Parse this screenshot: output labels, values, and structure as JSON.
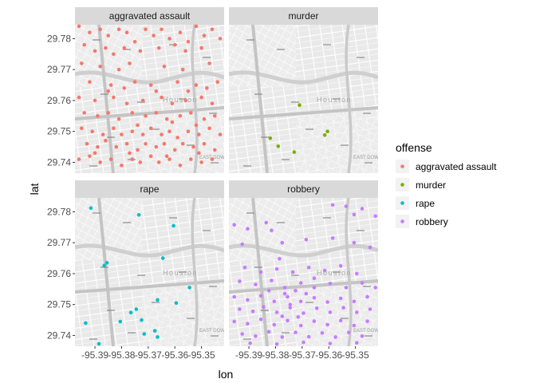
{
  "chart_data": {
    "type": "scatter",
    "xlabel": "lon",
    "ylabel": "lat",
    "xlim": [
      -95.3975,
      -95.3415
    ],
    "ylim": [
      29.7365,
      29.7845
    ],
    "x_ticks": [
      -95.39,
      -95.38,
      -95.37,
      -95.36,
      -95.35
    ],
    "x_tick_labels": [
      "-95.39",
      "-95.38",
      "-95.37",
      "-95.36",
      "-95.35"
    ],
    "y_ticks": [
      29.74,
      29.75,
      29.76,
      29.77,
      29.78
    ],
    "y_tick_labels": [
      "29.74",
      "29.75",
      "29.76",
      "29.77",
      "29.78"
    ],
    "facets": [
      "aggravated assault",
      "murder",
      "rape",
      "robbery"
    ],
    "legend": {
      "title": "offense",
      "position": "right",
      "entries": [
        "aggravated assault",
        "murder",
        "rape",
        "robbery"
      ]
    },
    "colors": {
      "aggravated assault": "#F8766D",
      "murder": "#7CAE00",
      "rape": "#00BFC4",
      "robbery": "#C77CFF"
    },
    "basemap_labels": [
      "Houston",
      "EAST DOWNTOWN"
    ],
    "series": [
      {
        "name": "aggravated assault",
        "points": [
          [
            -95.396,
            29.784
          ],
          [
            -95.392,
            29.782
          ],
          [
            -95.388,
            29.783
          ],
          [
            -95.385,
            29.781
          ],
          [
            -95.381,
            29.783
          ],
          [
            -95.378,
            29.782
          ],
          [
            -95.375,
            29.779
          ],
          [
            -95.371,
            29.783
          ],
          [
            -95.368,
            29.781
          ],
          [
            -95.365,
            29.783
          ],
          [
            -95.362,
            29.78
          ],
          [
            -95.358,
            29.782
          ],
          [
            -95.355,
            29.779
          ],
          [
            -95.352,
            29.784
          ],
          [
            -95.349,
            29.781
          ],
          [
            -95.346,
            29.783
          ],
          [
            -95.343,
            29.78
          ],
          [
            -95.394,
            29.778
          ],
          [
            -95.39,
            29.776
          ],
          [
            -95.386,
            29.777
          ],
          [
            -95.383,
            29.775
          ],
          [
            -95.379,
            29.777
          ],
          [
            -95.373,
            29.776
          ],
          [
            -95.366,
            29.777
          ],
          [
            -95.36,
            29.778
          ],
          [
            -95.356,
            29.776
          ],
          [
            -95.35,
            29.777
          ],
          [
            -95.395,
            29.772
          ],
          [
            -95.388,
            29.771
          ],
          [
            -95.381,
            29.77
          ],
          [
            -95.377,
            29.772
          ],
          [
            -95.364,
            29.771
          ],
          [
            -95.357,
            29.77
          ],
          [
            -95.347,
            29.772
          ],
          [
            -95.392,
            29.766
          ],
          [
            -95.384,
            29.765
          ],
          [
            -95.375,
            29.766
          ],
          [
            -95.369,
            29.765
          ],
          [
            -95.359,
            29.766
          ],
          [
            -95.352,
            29.765
          ],
          [
            -95.344,
            29.766
          ],
          [
            -95.396,
            29.761
          ],
          [
            -95.39,
            29.76
          ],
          [
            -95.383,
            29.761
          ],
          [
            -95.378,
            29.759
          ],
          [
            -95.372,
            29.76
          ],
          [
            -95.365,
            29.761
          ],
          [
            -95.361,
            29.759
          ],
          [
            -95.356,
            29.76
          ],
          [
            -95.35,
            29.761
          ],
          [
            -95.346,
            29.759
          ],
          [
            -95.394,
            29.756
          ],
          [
            -95.389,
            29.755
          ],
          [
            -95.385,
            29.756
          ],
          [
            -95.381,
            29.754
          ],
          [
            -95.376,
            29.756
          ],
          [
            -95.371,
            29.755
          ],
          [
            -95.367,
            29.756
          ],
          [
            -95.363,
            29.754
          ],
          [
            -95.358,
            29.755
          ],
          [
            -95.354,
            29.756
          ],
          [
            -95.349,
            29.754
          ],
          [
            -95.345,
            29.755
          ],
          [
            -95.395,
            29.751
          ],
          [
            -95.391,
            29.75
          ],
          [
            -95.387,
            29.749
          ],
          [
            -95.383,
            29.751
          ],
          [
            -95.38,
            29.749
          ],
          [
            -95.376,
            29.75
          ],
          [
            -95.372,
            29.749
          ],
          [
            -95.369,
            29.751
          ],
          [
            -95.365,
            29.749
          ],
          [
            -95.362,
            29.75
          ],
          [
            -95.359,
            29.748
          ],
          [
            -95.355,
            29.75
          ],
          [
            -95.351,
            29.749
          ],
          [
            -95.347,
            29.751
          ],
          [
            -95.343,
            29.749
          ],
          [
            -95.393,
            29.746
          ],
          [
            -95.389,
            29.745
          ],
          [
            -95.386,
            29.747
          ],
          [
            -95.382,
            29.745
          ],
          [
            -95.378,
            29.746
          ],
          [
            -95.374,
            29.744
          ],
          [
            -95.371,
            29.746
          ],
          [
            -95.367,
            29.745
          ],
          [
            -95.364,
            29.746
          ],
          [
            -95.36,
            29.744
          ],
          [
            -95.357,
            29.746
          ],
          [
            -95.353,
            29.745
          ],
          [
            -95.349,
            29.746
          ],
          [
            -95.345,
            29.744
          ],
          [
            -95.396,
            29.741
          ],
          [
            -95.392,
            29.742
          ],
          [
            -95.388,
            29.74
          ],
          [
            -95.384,
            29.741
          ],
          [
            -95.38,
            29.739
          ],
          [
            -95.376,
            29.741
          ],
          [
            -95.373,
            29.74
          ],
          [
            -95.369,
            29.742
          ],
          [
            -95.366,
            29.74
          ],
          [
            -95.362,
            29.741
          ],
          [
            -95.358,
            29.739
          ],
          [
            -95.354,
            29.741
          ],
          [
            -95.35,
            29.74
          ],
          [
            -95.346,
            29.741
          ],
          [
            -95.385,
            29.763
          ],
          [
            -95.379,
            29.764
          ],
          [
            -95.367,
            29.763
          ],
          [
            -95.355,
            29.763
          ],
          [
            -95.348,
            29.764
          ],
          [
            -95.374,
            29.752
          ],
          [
            -95.361,
            29.753
          ],
          [
            -95.352,
            29.752
          ],
          [
            -95.39,
            29.743
          ],
          [
            -95.377,
            29.743
          ],
          [
            -95.363,
            29.742
          ],
          [
            -95.351,
            29.743
          ]
        ]
      },
      {
        "name": "murder",
        "points": [
          [
            -95.371,
            29.7585
          ],
          [
            -95.382,
            29.7478
          ],
          [
            -95.379,
            29.7452
          ],
          [
            -95.373,
            29.7433
          ],
          [
            -95.3615,
            29.7488
          ],
          [
            -95.3605,
            29.75
          ]
        ]
      },
      {
        "name": "rape",
        "points": [
          [
            -95.3915,
            29.7812
          ],
          [
            -95.3735,
            29.779
          ],
          [
            -95.3605,
            29.7755
          ],
          [
            -95.3855,
            29.7635
          ],
          [
            -95.3865,
            29.7626
          ],
          [
            -95.3645,
            29.765
          ],
          [
            -95.3545,
            29.7555
          ],
          [
            -95.3665,
            29.7515
          ],
          [
            -95.3595,
            29.7505
          ],
          [
            -95.3745,
            29.7485
          ],
          [
            -95.3765,
            29.7474
          ],
          [
            -95.3935,
            29.744
          ],
          [
            -95.3805,
            29.7445
          ],
          [
            -95.3725,
            29.745
          ],
          [
            -95.3675,
            29.7415
          ],
          [
            -95.3885,
            29.7373
          ],
          [
            -95.3715,
            29.7405
          ],
          [
            -95.3665,
            29.7395
          ]
        ]
      },
      {
        "name": "robbery",
        "points": [
          [
            -95.3585,
            29.7822
          ],
          [
            -95.3535,
            29.7818
          ],
          [
            -95.3505,
            29.7791
          ],
          [
            -95.3425,
            29.7786
          ],
          [
            -95.3475,
            29.781
          ],
          [
            -95.3955,
            29.7758
          ],
          [
            -95.3905,
            29.7745
          ],
          [
            -95.3835,
            29.7765
          ],
          [
            -95.3815,
            29.774
          ],
          [
            -95.3925,
            29.7695
          ],
          [
            -95.3775,
            29.77
          ],
          [
            -95.3685,
            29.771
          ],
          [
            -95.3585,
            29.7715
          ],
          [
            -95.3505,
            29.77
          ],
          [
            -95.3445,
            29.7685
          ],
          [
            -95.3915,
            29.762
          ],
          [
            -95.3855,
            29.7605
          ],
          [
            -95.3795,
            29.7615
          ],
          [
            -95.3735,
            29.7605
          ],
          [
            -95.3675,
            29.762
          ],
          [
            -95.3615,
            29.761
          ],
          [
            -95.3555,
            29.7625
          ],
          [
            -95.3495,
            29.76
          ],
          [
            -95.3935,
            29.7575
          ],
          [
            -95.3875,
            29.7565
          ],
          [
            -95.3815,
            29.7578
          ],
          [
            -95.3765,
            29.7555
          ],
          [
            -95.3705,
            29.757
          ],
          [
            -95.3655,
            29.7555
          ],
          [
            -95.3595,
            29.7568
          ],
          [
            -95.3535,
            29.7555
          ],
          [
            -95.3475,
            29.757
          ],
          [
            -95.3425,
            29.7555
          ],
          [
            -95.3955,
            29.7525
          ],
          [
            -95.3905,
            29.7515
          ],
          [
            -95.3855,
            29.7528
          ],
          [
            -95.3805,
            29.751
          ],
          [
            -95.3755,
            29.7525
          ],
          [
            -95.3705,
            29.751
          ],
          [
            -95.3655,
            29.7522
          ],
          [
            -95.3605,
            29.7508
          ],
          [
            -95.3555,
            29.752
          ],
          [
            -95.3505,
            29.751
          ],
          [
            -95.3455,
            29.7525
          ],
          [
            -95.3935,
            29.7485
          ],
          [
            -95.3885,
            29.7478
          ],
          [
            -95.3845,
            29.7492
          ],
          [
            -95.3795,
            29.7475
          ],
          [
            -95.3745,
            29.749
          ],
          [
            -95.3695,
            29.7472
          ],
          [
            -95.3645,
            29.7488
          ],
          [
            -95.3595,
            29.7475
          ],
          [
            -95.3545,
            29.749
          ],
          [
            -95.3495,
            29.7475
          ],
          [
            -95.3445,
            29.7485
          ],
          [
            -95.3955,
            29.7445
          ],
          [
            -95.3905,
            29.7438
          ],
          [
            -95.3855,
            29.7452
          ],
          [
            -95.3805,
            29.7435
          ],
          [
            -95.3755,
            29.7448
          ],
          [
            -95.3705,
            29.7432
          ],
          [
            -95.3655,
            29.7446
          ],
          [
            -95.3605,
            29.7435
          ],
          [
            -95.3555,
            29.7448
          ],
          [
            -95.3505,
            29.7432
          ],
          [
            -95.3455,
            29.7446
          ],
          [
            -95.3925,
            29.7405
          ],
          [
            -95.3875,
            29.7398
          ],
          [
            -95.3825,
            29.7412
          ],
          [
            -95.3775,
            29.7395
          ],
          [
            -95.3725,
            29.741
          ],
          [
            -95.3675,
            29.7396
          ],
          [
            -95.3625,
            29.7408
          ],
          [
            -95.3575,
            29.7395
          ],
          [
            -95.3525,
            29.741
          ],
          [
            -95.3475,
            29.7398
          ],
          [
            -95.3895,
            29.7375
          ],
          [
            -95.3795,
            29.7372
          ],
          [
            -95.3695,
            29.7378
          ],
          [
            -95.3595,
            29.7374
          ],
          [
            -95.3495,
            29.7376
          ],
          [
            -95.3765,
            29.7535
          ],
          [
            -95.3725,
            29.7545
          ],
          [
            -95.3685,
            29.7535
          ],
          [
            -95.3745,
            29.75
          ],
          [
            -95.3715,
            29.746
          ],
          [
            -95.3775,
            29.7462
          ],
          [
            -95.3825,
            29.7545
          ],
          [
            -95.3655,
            29.7585
          ],
          [
            -95.3785,
            29.7648
          ]
        ]
      }
    ]
  }
}
